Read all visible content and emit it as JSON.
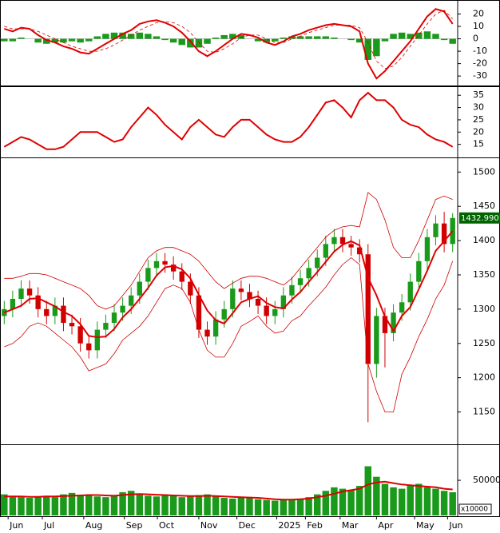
{
  "chart_data": [
    {
      "type": "indicator",
      "xlim": [
        -0.5,
        53.5
      ],
      "ylim": [
        -37,
        30
      ],
      "yticks": [
        20,
        10,
        0,
        -10,
        -20,
        -30
      ],
      "series": [
        {
          "kind": "bar",
          "color": "#1a9a1a",
          "values": [
            -2,
            -2,
            1,
            0,
            -3,
            -4,
            -3,
            -3,
            -2,
            -3,
            -2,
            2,
            4,
            5,
            5,
            4,
            5,
            4,
            2,
            -1,
            -3,
            -5,
            -7,
            -7,
            -4,
            1,
            3,
            4,
            3,
            0,
            -2,
            -3,
            -2,
            1,
            2,
            2,
            2,
            2,
            2,
            1,
            0,
            -1,
            -3,
            -17,
            -14,
            -2,
            4,
            5,
            4,
            5,
            6,
            4,
            -1,
            -4
          ]
        },
        {
          "kind": "dashed",
          "color": "#d00000",
          "values": [
            10,
            8,
            8,
            8,
            6,
            3,
            0,
            -3,
            -6,
            -8,
            -10,
            -10,
            -8,
            -5,
            -1,
            3,
            7,
            10,
            13,
            14,
            13,
            10,
            5,
            -3,
            -10,
            -11,
            -8,
            -4,
            1,
            3,
            3,
            0,
            -3,
            -3,
            0,
            2,
            5,
            7,
            9,
            11,
            11,
            11,
            9,
            -3,
            -18,
            -24,
            -22,
            -15,
            -6,
            3,
            12,
            20,
            23,
            16
          ]
        },
        {
          "kind": "line",
          "color": "#e00000",
          "values": [
            8,
            6,
            9,
            8,
            3,
            -1,
            -3,
            -6,
            -8,
            -11,
            -12,
            -8,
            -4,
            0,
            4,
            7,
            12,
            14,
            15,
            13,
            10,
            5,
            -2,
            -10,
            -14,
            -10,
            -5,
            0,
            4,
            3,
            1,
            -3,
            -5,
            -2,
            2,
            4,
            7,
            9,
            11,
            12,
            11,
            10,
            6,
            -20,
            -32,
            -26,
            -18,
            -10,
            -2,
            8,
            18,
            24,
            22,
            12
          ]
        }
      ]
    },
    {
      "type": "indicator",
      "xlim": [
        -0.5,
        53.5
      ],
      "ylim": [
        10,
        38
      ],
      "yticks": [
        35,
        30,
        25,
        20,
        15
      ],
      "series": [
        {
          "kind": "line",
          "color": "#e00000",
          "values": [
            14,
            16,
            18,
            17,
            15,
            13,
            13,
            14,
            17,
            20,
            20,
            20,
            18,
            16,
            17,
            22,
            26,
            30,
            27,
            23,
            20,
            17,
            22,
            25,
            22,
            19,
            18,
            22,
            25,
            25,
            22,
            19,
            17,
            16,
            16,
            18,
            22,
            27,
            32,
            33,
            30,
            26,
            33,
            36,
            33,
            33,
            30,
            25,
            23,
            22,
            19,
            17,
            16,
            14
          ]
        }
      ]
    },
    {
      "type": "candlestick",
      "xlim": [
        -0.5,
        53.5
      ],
      "ylim": [
        1104,
        1519
      ],
      "yticks": [
        1150,
        1200,
        1250,
        1300,
        1350,
        1400,
        1450,
        1500
      ],
      "up_color": "#1a9a1a",
      "down_color": "#d00000",
      "open": [
        1290,
        1300,
        1315,
        1330,
        1320,
        1300,
        1290,
        1305,
        1280,
        1275,
        1250,
        1240,
        1270,
        1280,
        1295,
        1305,
        1320,
        1340,
        1360,
        1370,
        1365,
        1355,
        1340,
        1320,
        1270,
        1260,
        1285,
        1300,
        1330,
        1325,
        1315,
        1305,
        1290,
        1300,
        1320,
        1335,
        1345,
        1360,
        1375,
        1395,
        1405,
        1395,
        1390,
        1380,
        1220,
        1290,
        1265,
        1295,
        1310,
        1340,
        1370,
        1405,
        1425,
        1395
      ],
      "high": [
        1312,
        1327,
        1342,
        1342,
        1332,
        1312,
        1317,
        1317,
        1292,
        1287,
        1262,
        1282,
        1292,
        1307,
        1317,
        1332,
        1352,
        1372,
        1382,
        1382,
        1377,
        1367,
        1352,
        1332,
        1282,
        1297,
        1312,
        1342,
        1342,
        1337,
        1327,
        1317,
        1312,
        1332,
        1347,
        1357,
        1372,
        1387,
        1407,
        1417,
        1417,
        1407,
        1402,
        1395,
        1302,
        1302,
        1307,
        1322,
        1352,
        1382,
        1417,
        1437,
        1442,
        1440
      ],
      "low": [
        1278,
        1288,
        1303,
        1308,
        1288,
        1278,
        1278,
        1268,
        1263,
        1238,
        1228,
        1228,
        1258,
        1268,
        1283,
        1293,
        1308,
        1328,
        1348,
        1353,
        1343,
        1328,
        1308,
        1258,
        1248,
        1248,
        1273,
        1288,
        1313,
        1303,
        1293,
        1278,
        1278,
        1288,
        1308,
        1323,
        1333,
        1348,
        1363,
        1383,
        1383,
        1378,
        1368,
        1135,
        1200,
        1215,
        1253,
        1283,
        1298,
        1328,
        1358,
        1393,
        1383,
        1383
      ],
      "close": [
        1300,
        1315,
        1330,
        1320,
        1300,
        1290,
        1305,
        1280,
        1275,
        1250,
        1240,
        1270,
        1280,
        1295,
        1305,
        1320,
        1340,
        1360,
        1370,
        1365,
        1355,
        1340,
        1320,
        1270,
        1260,
        1285,
        1300,
        1330,
        1325,
        1315,
        1305,
        1290,
        1300,
        1320,
        1335,
        1345,
        1360,
        1375,
        1395,
        1405,
        1395,
        1390,
        1380,
        1220,
        1290,
        1265,
        1295,
        1310,
        1340,
        1370,
        1405,
        1425,
        1395,
        1432.99
      ],
      "series": [
        {
          "kind": "thin",
          "color": "#d00000",
          "values": [
            1345,
            1345,
            1348,
            1352,
            1352,
            1350,
            1345,
            1340,
            1335,
            1330,
            1320,
            1305,
            1300,
            1305,
            1320,
            1335,
            1355,
            1375,
            1385,
            1390,
            1390,
            1385,
            1380,
            1370,
            1355,
            1340,
            1330,
            1338,
            1345,
            1348,
            1348,
            1345,
            1340,
            1335,
            1345,
            1360,
            1375,
            1390,
            1405,
            1415,
            1420,
            1422,
            1420,
            1470,
            1460,
            1430,
            1390,
            1375,
            1375,
            1400,
            1430,
            1460,
            1465,
            1460
          ]
        },
        {
          "kind": "thin",
          "color": "#d00000",
          "values": [
            1245,
            1250,
            1260,
            1275,
            1280,
            1275,
            1265,
            1255,
            1245,
            1230,
            1210,
            1215,
            1220,
            1235,
            1255,
            1265,
            1275,
            1290,
            1310,
            1330,
            1335,
            1330,
            1310,
            1270,
            1240,
            1230,
            1230,
            1250,
            1275,
            1282,
            1290,
            1275,
            1265,
            1268,
            1283,
            1290,
            1305,
            1318,
            1332,
            1350,
            1365,
            1375,
            1365,
            1220,
            1180,
            1150,
            1150,
            1205,
            1230,
            1260,
            1285,
            1315,
            1335,
            1370
          ]
        },
        {
          "kind": "line",
          "color": "#e00000",
          "values": [
            1295,
            1300,
            1305,
            1315,
            1316,
            1310,
            1304,
            1296,
            1290,
            1278,
            1261,
            1259,
            1260,
            1271,
            1288,
            1300,
            1315,
            1331,
            1349,
            1361,
            1363,
            1358,
            1345,
            1321,
            1298,
            1284,
            1279,
            1294,
            1310,
            1315,
            1319,
            1309,
            1303,
            1301,
            1314,
            1325,
            1340,
            1354,
            1369,
            1384,
            1394,
            1399,
            1393,
            1346,
            1320,
            1289,
            1268,
            1290,
            1303,
            1329,
            1356,
            1385,
            1399,
            1414
          ]
        }
      ],
      "last_price": 1432.99,
      "last_price_label": "1432.990"
    },
    {
      "type": "volume",
      "xlim": [
        -0.5,
        53.5
      ],
      "ylim": [
        0,
        99000
      ],
      "yticks": [
        50000
      ],
      "unit_label": "x10000",
      "series": [
        {
          "kind": "bar",
          "color": "#1a9a1a",
          "values": [
            30000,
            28000,
            26000,
            25000,
            27000,
            28000,
            26000,
            30000,
            32000,
            28000,
            30000,
            27000,
            26000,
            29000,
            33000,
            35000,
            30000,
            28000,
            27000,
            30000,
            28000,
            26000,
            27000,
            29000,
            30000,
            27000,
            25000,
            24000,
            26000,
            25000,
            23000,
            22000,
            21000,
            22000,
            23000,
            24000,
            26000,
            30000,
            35000,
            40000,
            38000,
            36000,
            42000,
            70000,
            55000,
            45000,
            40000,
            38000,
            42000,
            45000,
            40000,
            38000,
            35000,
            33000
          ]
        },
        {
          "kind": "line",
          "color": "#e00000",
          "values": [
            27000,
            27000,
            27000,
            26500,
            26500,
            27000,
            27000,
            27500,
            28000,
            28500,
            29000,
            29000,
            28500,
            28000,
            29000,
            30000,
            30500,
            30000,
            29500,
            29000,
            28500,
            28000,
            27500,
            27500,
            28000,
            27500,
            27000,
            26500,
            26000,
            25500,
            25000,
            24000,
            23000,
            22500,
            22500,
            23000,
            24000,
            26000,
            28000,
            31000,
            34000,
            36000,
            38000,
            44000,
            47000,
            48000,
            46000,
            44000,
            43000,
            42000,
            41000,
            40000,
            38000,
            37000
          ]
        }
      ],
      "xticks": [
        {
          "value": 0.46,
          "label": "Jun"
        },
        {
          "value": 4.5,
          "label": "Jul"
        },
        {
          "value": 9.4,
          "label": "Aug"
        },
        {
          "value": 14.2,
          "label": "Sep"
        },
        {
          "value": 18.1,
          "label": "Oct"
        },
        {
          "value": 23,
          "label": "Nov"
        },
        {
          "value": 27.5,
          "label": "Dec"
        },
        {
          "value": 32.2,
          "label": "2025"
        },
        {
          "value": 35.6,
          "label": "Feb"
        },
        {
          "value": 39.7,
          "label": "Mar"
        },
        {
          "value": 44,
          "label": "Apr"
        },
        {
          "value": 48.5,
          "label": "May"
        },
        {
          "value": 52.4,
          "label": "Jun"
        }
      ]
    }
  ]
}
